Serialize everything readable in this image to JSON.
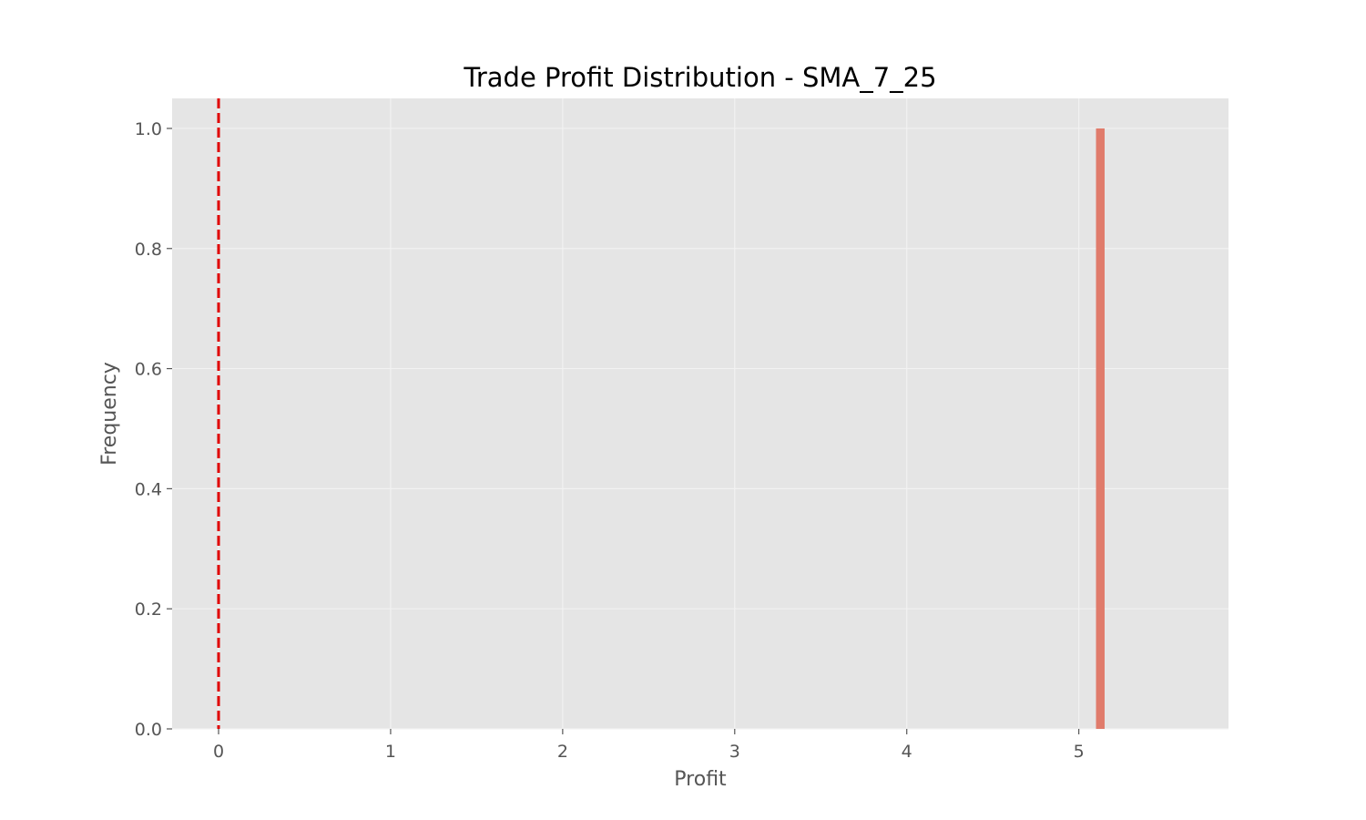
{
  "chart_data": {
    "type": "bar",
    "title": "Trade Profit Distribution - SMA_7_25",
    "xlabel": "Profit",
    "ylabel": "Frequency",
    "xlim": [
      -0.27,
      5.87
    ],
    "ylim": [
      0,
      1.05
    ],
    "xticks": [
      0,
      1,
      2,
      3,
      4,
      5
    ],
    "xtick_labels": [
      "0",
      "1",
      "2",
      "3",
      "4",
      "5"
    ],
    "yticks": [
      0.0,
      0.2,
      0.4,
      0.6,
      0.8,
      1.0
    ],
    "ytick_labels": [
      "0.0",
      "0.2",
      "0.4",
      "0.6",
      "0.8",
      "1.0"
    ],
    "grid": true,
    "bins": [
      {
        "left": 5.1,
        "right": 5.15,
        "count": 1
      }
    ],
    "reference_line": {
      "x": 0,
      "style": "dashed",
      "color": "#e00000"
    },
    "colors": {
      "bar": "#e07b6b",
      "plot_background": "#e5e5e5",
      "grid": "#f2f2f2"
    }
  }
}
